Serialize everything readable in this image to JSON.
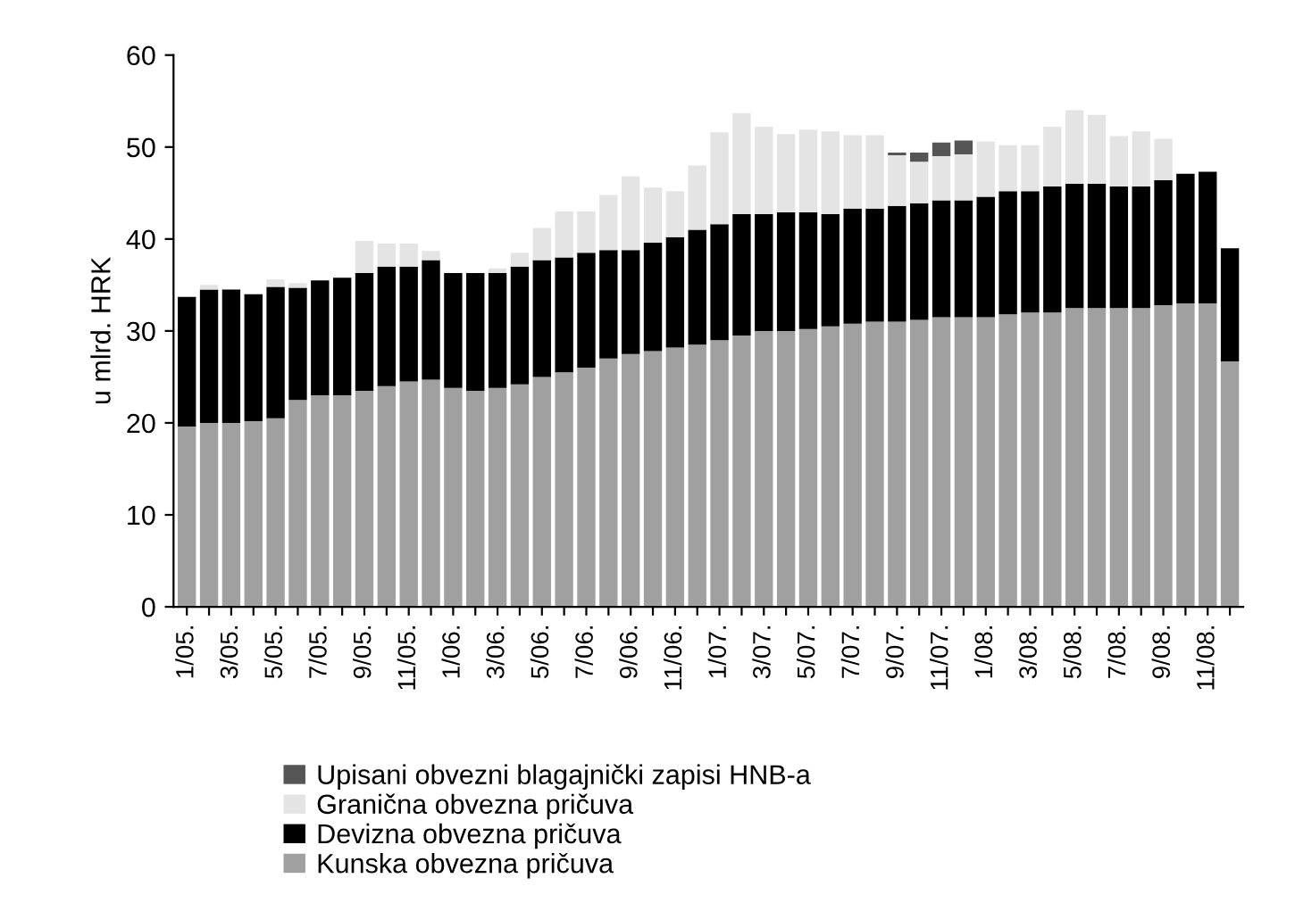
{
  "chart_data": {
    "type": "bar",
    "stacked": true,
    "ylabel": "u mlrd. HRK",
    "categories": [
      "1/05.",
      null,
      "3/05.",
      null,
      "5/05.",
      null,
      "7/05.",
      null,
      "9/05.",
      null,
      "11/05.",
      null,
      "1/06.",
      null,
      "3/06.",
      null,
      "5/06.",
      null,
      "7/06.",
      null,
      "9/06.",
      null,
      "11/06.",
      null,
      "1/07.",
      null,
      "3/07.",
      null,
      "5/07.",
      null,
      "7/07.",
      null,
      "9/07.",
      null,
      "11/07.",
      null,
      "1/08.",
      null,
      "3/08.",
      null,
      "5/08.",
      null,
      "7/08.",
      null,
      "9/08.",
      null,
      "11/08.",
      null
    ],
    "series": [
      {
        "name": "Kunska obvezna pričuva",
        "color": "#a0a0a0",
        "values": [
          19.6,
          20.0,
          20.0,
          20.2,
          20.5,
          22.5,
          23.0,
          23.0,
          23.5,
          24.0,
          24.5,
          24.7,
          23.8,
          23.5,
          23.8,
          24.2,
          25.0,
          25.5,
          26.0,
          27.0,
          27.5,
          27.8,
          28.2,
          28.5,
          29.0,
          29.5,
          30.0,
          30.0,
          30.2,
          30.5,
          30.8,
          31.0,
          31.0,
          31.2,
          31.5,
          31.5,
          31.5,
          31.8,
          32.0,
          32.0,
          32.5,
          32.5,
          32.5,
          32.5,
          32.8,
          33.0,
          33.0,
          26.7
        ]
      },
      {
        "name": "Devizna obvezna pričuva",
        "color": "#000000",
        "values": [
          14.1,
          14.5,
          14.5,
          13.8,
          14.3,
          12.2,
          12.5,
          12.8,
          12.8,
          13.0,
          12.5,
          13.0,
          12.5,
          12.8,
          12.5,
          12.8,
          12.7,
          12.5,
          12.5,
          11.8,
          11.3,
          11.8,
          12.0,
          12.5,
          12.6,
          13.2,
          12.7,
          12.9,
          12.7,
          12.2,
          12.5,
          12.3,
          12.6,
          12.7,
          12.7,
          12.7,
          13.1,
          13.4,
          13.2,
          13.7,
          13.5,
          13.5,
          13.2,
          13.2,
          13.6,
          14.1,
          14.3,
          12.3
        ]
      },
      {
        "name": "Granična obvezna pričuva",
        "color": "#e4e4e4",
        "values": [
          0,
          0.5,
          0,
          0,
          0.8,
          0.5,
          0,
          0,
          3.5,
          2.5,
          2.5,
          1.0,
          0,
          0,
          0.5,
          1.5,
          3.5,
          5,
          4.5,
          6,
          8,
          6,
          5,
          7,
          10,
          11,
          9.5,
          8.5,
          9,
          9,
          8,
          8,
          5.5,
          4.5,
          4.8,
          5,
          6,
          5,
          5,
          6.5,
          8,
          7.5,
          5.5,
          6,
          4.5,
          0,
          0,
          0
        ]
      },
      {
        "name": "Upisani obvezni blagajnički zapisi HNB-a",
        "color": "#555555",
        "values": [
          0,
          0,
          0,
          0,
          0,
          0,
          0,
          0,
          0,
          0,
          0,
          0,
          0,
          0,
          0,
          0,
          0,
          0,
          0,
          0,
          0,
          0,
          0,
          0,
          0,
          0,
          0,
          0,
          0,
          0,
          0,
          0,
          0.3,
          1.0,
          1.5,
          1.5,
          0,
          0,
          0,
          0,
          0,
          0,
          0,
          0,
          0,
          0,
          0,
          0
        ]
      }
    ],
    "ylim": [
      0,
      60
    ],
    "yticks": [
      0,
      10,
      20,
      30,
      40,
      50,
      60
    ],
    "grid": false,
    "legend": "bottom"
  }
}
